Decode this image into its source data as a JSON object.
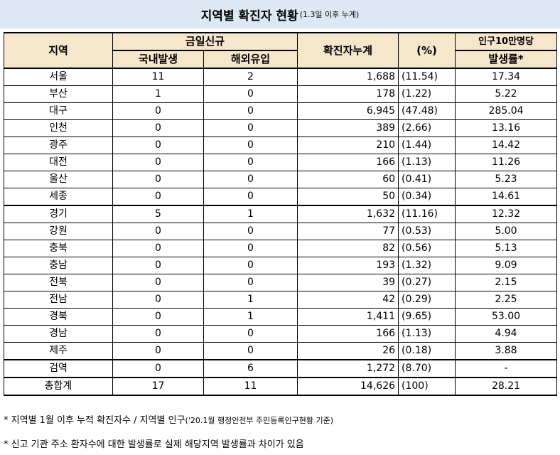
{
  "title": {
    "main": "지역별 확진자 현황",
    "sub": "(1.3일 이후 누계)"
  },
  "headers": {
    "region": "지역",
    "today_new": "금일신규",
    "domestic": "국내발생",
    "overseas": "해외유입",
    "cumulative": "확진자누계",
    "percent": "(%)",
    "rate_line1": "인구10만명당",
    "rate_line2": "발생률*"
  },
  "rows": [
    {
      "region": "서울",
      "domestic": "11",
      "overseas": "2",
      "total": "1,688",
      "pct": "(11.54)",
      "rate": "17.34"
    },
    {
      "region": "부산",
      "domestic": "1",
      "overseas": "0",
      "total": "178",
      "pct": "(1.22)",
      "rate": "5.22"
    },
    {
      "region": "대구",
      "domestic": "0",
      "overseas": "0",
      "total": "6,945",
      "pct": "(47.48)",
      "rate": "285.04"
    },
    {
      "region": "인천",
      "domestic": "0",
      "overseas": "0",
      "total": "389",
      "pct": "(2.66)",
      "rate": "13.16"
    },
    {
      "region": "광주",
      "domestic": "0",
      "overseas": "0",
      "total": "210",
      "pct": "(1.44)",
      "rate": "14.42"
    },
    {
      "region": "대전",
      "domestic": "0",
      "overseas": "0",
      "total": "166",
      "pct": "(1.13)",
      "rate": "11.26"
    },
    {
      "region": "울산",
      "domestic": "0",
      "overseas": "0",
      "total": "60",
      "pct": "(0.41)",
      "rate": "5.23"
    },
    {
      "region": "세종",
      "domestic": "0",
      "overseas": "0",
      "total": "50",
      "pct": "(0.34)",
      "rate": "14.61"
    },
    {
      "region": "경기",
      "domestic": "5",
      "overseas": "1",
      "total": "1,632",
      "pct": "(11.16)",
      "rate": "12.32"
    },
    {
      "region": "강원",
      "domestic": "0",
      "overseas": "0",
      "total": "77",
      "pct": "(0.53)",
      "rate": "5.00"
    },
    {
      "region": "충북",
      "domestic": "0",
      "overseas": "0",
      "total": "82",
      "pct": "(0.56)",
      "rate": "5.13"
    },
    {
      "region": "충남",
      "domestic": "0",
      "overseas": "0",
      "total": "193",
      "pct": "(1.32)",
      "rate": "9.09"
    },
    {
      "region": "전북",
      "domestic": "0",
      "overseas": "0",
      "total": "39",
      "pct": "(0.27)",
      "rate": "2.15"
    },
    {
      "region": "전남",
      "domestic": "0",
      "overseas": "1",
      "total": "42",
      "pct": "(0.29)",
      "rate": "2.25"
    },
    {
      "region": "경북",
      "domestic": "0",
      "overseas": "1",
      "total": "1,411",
      "pct": "(9.65)",
      "rate": "53.00"
    },
    {
      "region": "경남",
      "domestic": "0",
      "overseas": "0",
      "total": "166",
      "pct": "(1.13)",
      "rate": "4.94"
    },
    {
      "region": "제주",
      "domestic": "0",
      "overseas": "0",
      "total": "26",
      "pct": "(0.18)",
      "rate": "3.88"
    },
    {
      "region": "검역",
      "domestic": "0",
      "overseas": "6",
      "total": "1,272",
      "pct": "(8.70)",
      "rate": "-"
    },
    {
      "region": "총합계",
      "domestic": "17",
      "overseas": "11",
      "total": "14,626",
      "pct": "(100)",
      "rate": "28.21"
    }
  ],
  "notes": {
    "note1_main": "* 지역별 1월 이후 누적 확진자수 / 지역별 인구",
    "note1_small": "('20.1월 행정안전부 주민등록인구현황 기준)",
    "note2": "* 신고 기관 주소 환자수에 대한 발생률로 실제 해당지역 발생률과 차이가 있음"
  }
}
